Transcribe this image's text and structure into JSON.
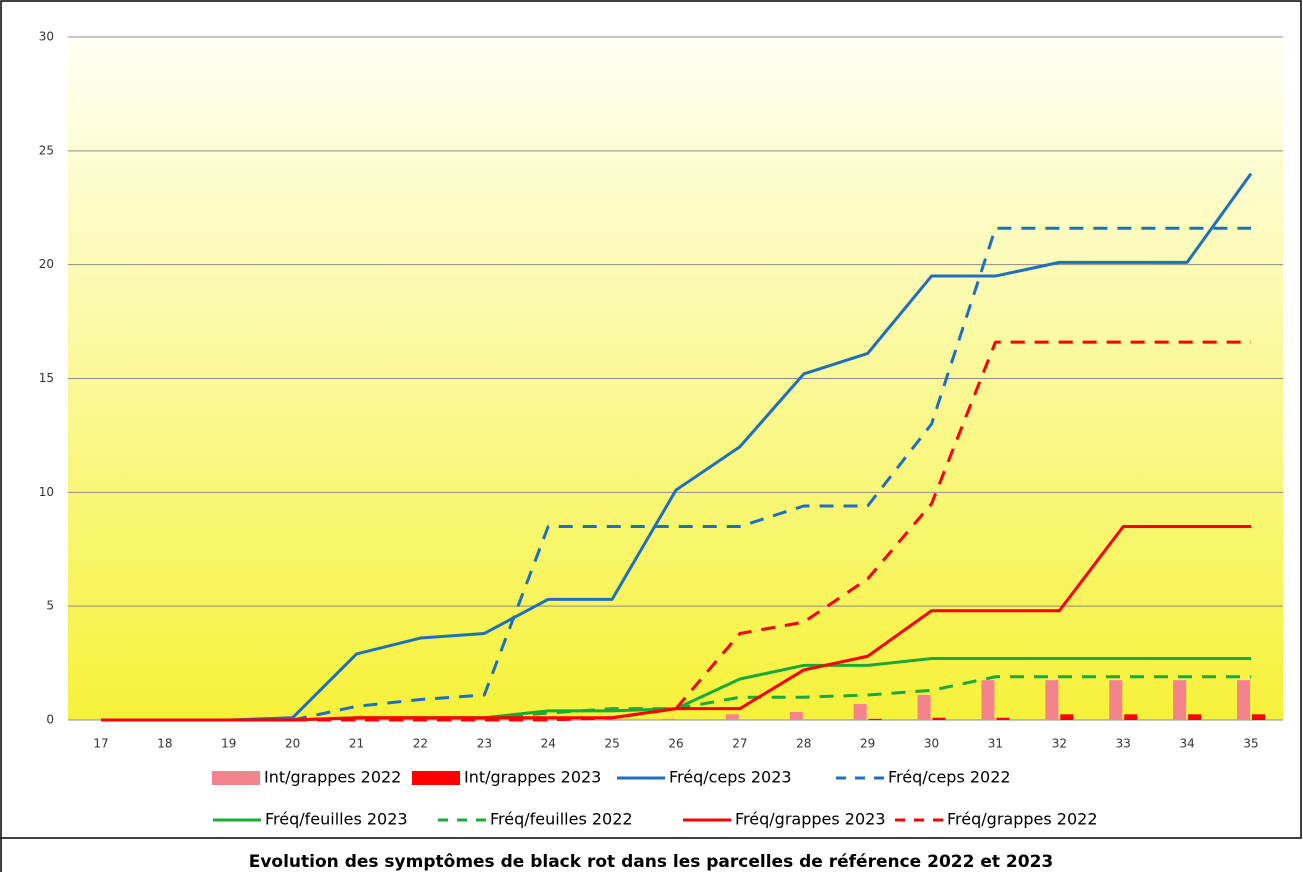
{
  "chart_data": {
    "type": "line",
    "caption": "Evolution des symptômes de black rot dans les parcelles de référence 2022 et 2023",
    "categories": [
      "17",
      "18",
      "19",
      "20",
      "21",
      "22",
      "23",
      "24",
      "25",
      "26",
      "27",
      "28",
      "29",
      "30",
      "31",
      "32",
      "33",
      "34",
      "35"
    ],
    "ylim": [
      0,
      30
    ],
    "yticks": [
      0,
      5,
      10,
      15,
      20,
      25,
      30
    ],
    "grid": true,
    "series": [
      {
        "name": "Int/grappes 2022",
        "type": "bar",
        "color": "#f4838c",
        "values": [
          0,
          0,
          0,
          0,
          0,
          0,
          0,
          0,
          0,
          0.05,
          0.25,
          0.35,
          0.7,
          1.1,
          1.75,
          1.75,
          1.75,
          1.75,
          1.75
        ]
      },
      {
        "name": "Int/grappes 2023",
        "type": "bar",
        "color": "#ff0000",
        "values": [
          0,
          0,
          0,
          0,
          0,
          0,
          0,
          0,
          0,
          0,
          0,
          0,
          0.05,
          0.1,
          0.1,
          0.25,
          0.25,
          0.25,
          0.25
        ]
      },
      {
        "name": "Fréq/ceps 2023",
        "type": "line",
        "dashed": false,
        "color": "#1f6fbf",
        "values": [
          0,
          0,
          0,
          0.1,
          2.9,
          3.6,
          3.8,
          5.3,
          5.3,
          10.1,
          12,
          15.2,
          16.1,
          19.5,
          19.5,
          20.1,
          20.1,
          20.1,
          24
        ]
      },
      {
        "name": "Fréq/ceps 2022",
        "type": "line",
        "dashed": true,
        "color": "#1f6fbf",
        "values": [
          0,
          0,
          0,
          0,
          0.6,
          0.9,
          1.1,
          8.5,
          8.5,
          8.5,
          8.5,
          9.4,
          9.4,
          13,
          21.6,
          21.6,
          21.6,
          21.6,
          21.6
        ]
      },
      {
        "name": "Fréq/feuilles 2023",
        "type": "line",
        "dashed": false,
        "color": "#1aaa3a",
        "values": [
          0,
          0,
          0,
          0,
          0.1,
          0.1,
          0.1,
          0.4,
          0.4,
          0.5,
          1.8,
          2.4,
          2.4,
          2.7,
          2.7,
          2.7,
          2.7,
          2.7,
          2.7
        ]
      },
      {
        "name": "Fréq/feuilles 2022",
        "type": "line",
        "dashed": true,
        "color": "#1aaa3a",
        "values": [
          0,
          0,
          0,
          0,
          0,
          0,
          0.1,
          0.3,
          0.5,
          0.5,
          1,
          1,
          1.1,
          1.3,
          1.9,
          1.9,
          1.9,
          1.9,
          1.9
        ]
      },
      {
        "name": "Fréq/grappes 2023",
        "type": "line",
        "dashed": false,
        "color": "#ff0000",
        "values": [
          0,
          0,
          0,
          0,
          0.1,
          0.1,
          0.1,
          0.1,
          0.1,
          0.5,
          0.5,
          2.2,
          2.8,
          4.8,
          4.8,
          4.8,
          8.5,
          8.5,
          8.5
        ]
      },
      {
        "name": "Fréq/grappes 2022",
        "type": "line",
        "dashed": true,
        "color": "#ff0000",
        "values": [
          0,
          0,
          0,
          0,
          0,
          0,
          0,
          0,
          0.1,
          0.5,
          3.8,
          4.3,
          6.2,
          9.5,
          16.6,
          16.6,
          16.6,
          16.6,
          16.6
        ]
      }
    ]
  }
}
